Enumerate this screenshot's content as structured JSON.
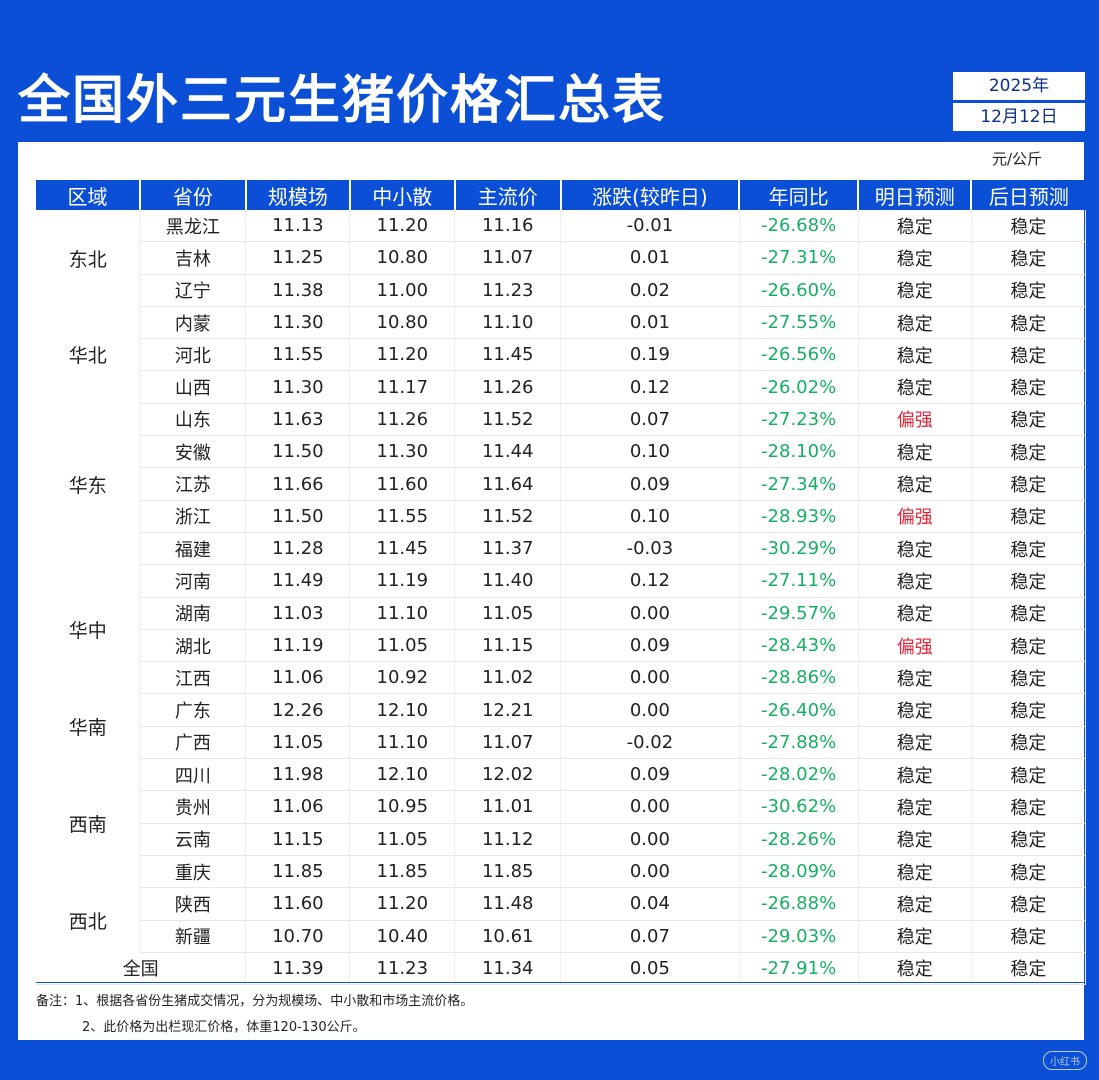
{
  "title": "全国外三元生猪价格汇总表",
  "date": {
    "year": "2025年",
    "day": "12月12日"
  },
  "unit": "元/公斤",
  "columns": [
    "区域",
    "省份",
    "规模场",
    "中小散",
    "主流价",
    "涨跌(较昨日)",
    "年同比",
    "明日预测",
    "后日预测"
  ],
  "rows": [
    {
      "region": "东北",
      "region_span": 3,
      "province": "黑龙江",
      "large": "11.13",
      "small": "11.20",
      "main": "11.16",
      "change": "-0.01",
      "trend": "down",
      "yoy": "-26.68%",
      "tomorrow": "稳定",
      "tomorrow_strong": false,
      "dayafter": "稳定"
    },
    {
      "province": "吉林",
      "large": "11.25",
      "small": "10.80",
      "main": "11.07",
      "change": "0.01",
      "trend": "up",
      "yoy": "-27.31%",
      "tomorrow": "稳定",
      "tomorrow_strong": false,
      "dayafter": "稳定"
    },
    {
      "province": "辽宁",
      "large": "11.38",
      "small": "11.00",
      "main": "11.23",
      "change": "0.02",
      "trend": "up",
      "yoy": "-26.60%",
      "tomorrow": "稳定",
      "tomorrow_strong": false,
      "dayafter": "稳定"
    },
    {
      "region": "华北",
      "region_span": 3,
      "province": "内蒙",
      "large": "11.30",
      "small": "10.80",
      "main": "11.10",
      "change": "0.01",
      "trend": "up",
      "yoy": "-27.55%",
      "tomorrow": "稳定",
      "tomorrow_strong": false,
      "dayafter": "稳定"
    },
    {
      "province": "河北",
      "large": "11.55",
      "small": "11.20",
      "main": "11.45",
      "change": "0.19",
      "trend": "up",
      "yoy": "-26.56%",
      "tomorrow": "稳定",
      "tomorrow_strong": false,
      "dayafter": "稳定"
    },
    {
      "province": "山西",
      "large": "11.30",
      "small": "11.17",
      "main": "11.26",
      "change": "0.12",
      "trend": "up",
      "yoy": "-26.02%",
      "tomorrow": "稳定",
      "tomorrow_strong": false,
      "dayafter": "稳定"
    },
    {
      "region": "华东",
      "region_span": 5,
      "province": "山东",
      "large": "11.63",
      "small": "11.26",
      "main": "11.52",
      "change": "0.07",
      "trend": "up",
      "yoy": "-27.23%",
      "tomorrow": "偏强",
      "tomorrow_strong": true,
      "dayafter": "稳定"
    },
    {
      "province": "安徽",
      "large": "11.50",
      "small": "11.30",
      "main": "11.44",
      "change": "0.10",
      "trend": "up",
      "yoy": "-28.10%",
      "tomorrow": "稳定",
      "tomorrow_strong": false,
      "dayafter": "稳定"
    },
    {
      "province": "江苏",
      "large": "11.66",
      "small": "11.60",
      "main": "11.64",
      "change": "0.09",
      "trend": "up",
      "yoy": "-27.34%",
      "tomorrow": "稳定",
      "tomorrow_strong": false,
      "dayafter": "稳定"
    },
    {
      "province": "浙江",
      "large": "11.50",
      "small": "11.55",
      "main": "11.52",
      "change": "0.10",
      "trend": "up",
      "yoy": "-28.93%",
      "tomorrow": "偏强",
      "tomorrow_strong": true,
      "dayafter": "稳定"
    },
    {
      "province": "福建",
      "large": "11.28",
      "small": "11.45",
      "main": "11.37",
      "change": "-0.03",
      "trend": "down",
      "yoy": "-30.29%",
      "tomorrow": "稳定",
      "tomorrow_strong": false,
      "dayafter": "稳定"
    },
    {
      "region": "华中",
      "region_span": 4,
      "province": "河南",
      "large": "11.49",
      "small": "11.19",
      "main": "11.40",
      "change": "0.12",
      "trend": "up",
      "yoy": "-27.11%",
      "tomorrow": "稳定",
      "tomorrow_strong": false,
      "dayafter": "稳定"
    },
    {
      "province": "湖南",
      "large": "11.03",
      "small": "11.10",
      "main": "11.05",
      "change": "0.00",
      "trend": "flat",
      "yoy": "-29.57%",
      "tomorrow": "稳定",
      "tomorrow_strong": false,
      "dayafter": "稳定"
    },
    {
      "province": "湖北",
      "large": "11.19",
      "small": "11.05",
      "main": "11.15",
      "change": "0.09",
      "trend": "up",
      "yoy": "-28.43%",
      "tomorrow": "偏强",
      "tomorrow_strong": true,
      "dayafter": "稳定"
    },
    {
      "province": "江西",
      "large": "11.06",
      "small": "10.92",
      "main": "11.02",
      "change": "0.00",
      "trend": "flat",
      "yoy": "-28.86%",
      "tomorrow": "稳定",
      "tomorrow_strong": false,
      "dayafter": "稳定"
    },
    {
      "region": "华南",
      "region_span": 2,
      "province": "广东",
      "large": "12.26",
      "small": "12.10",
      "main": "12.21",
      "change": "0.00",
      "trend": "flat",
      "yoy": "-26.40%",
      "tomorrow": "稳定",
      "tomorrow_strong": false,
      "dayafter": "稳定"
    },
    {
      "province": "广西",
      "large": "11.05",
      "small": "11.10",
      "main": "11.07",
      "change": "-0.02",
      "trend": "down",
      "yoy": "-27.88%",
      "tomorrow": "稳定",
      "tomorrow_strong": false,
      "dayafter": "稳定"
    },
    {
      "region": "西南",
      "region_span": 4,
      "province": "四川",
      "large": "11.98",
      "small": "12.10",
      "main": "12.02",
      "change": "0.09",
      "trend": "up",
      "yoy": "-28.02%",
      "tomorrow": "稳定",
      "tomorrow_strong": false,
      "dayafter": "稳定"
    },
    {
      "province": "贵州",
      "large": "11.06",
      "small": "10.95",
      "main": "11.01",
      "change": "0.00",
      "trend": "flat",
      "yoy": "-30.62%",
      "tomorrow": "稳定",
      "tomorrow_strong": false,
      "dayafter": "稳定"
    },
    {
      "province": "云南",
      "large": "11.15",
      "small": "11.05",
      "main": "11.12",
      "change": "0.00",
      "trend": "flat",
      "yoy": "-28.26%",
      "tomorrow": "稳定",
      "tomorrow_strong": false,
      "dayafter": "稳定"
    },
    {
      "province": "重庆",
      "large": "11.85",
      "small": "11.85",
      "main": "11.85",
      "change": "0.00",
      "trend": "flat",
      "yoy": "-28.09%",
      "tomorrow": "稳定",
      "tomorrow_strong": false,
      "dayafter": "稳定"
    },
    {
      "region": "西北",
      "region_span": 2,
      "province": "陕西",
      "large": "11.60",
      "small": "11.20",
      "main": "11.48",
      "change": "0.04",
      "trend": "up",
      "yoy": "-26.88%",
      "tomorrow": "稳定",
      "tomorrow_strong": false,
      "dayafter": "稳定"
    },
    {
      "province": "新疆",
      "large": "10.70",
      "small": "10.40",
      "main": "10.61",
      "change": "0.07",
      "trend": "up",
      "yoy": "-29.03%",
      "tomorrow": "稳定",
      "tomorrow_strong": false,
      "dayafter": "稳定"
    }
  ],
  "total": {
    "label": "全国",
    "large": "11.39",
    "small": "11.23",
    "main": "11.34",
    "change": "0.05",
    "trend": "up",
    "yoy": "-27.91%",
    "tomorrow": "稳定",
    "dayafter": "稳定"
  },
  "notes": [
    "备注：1、根据各省份生猪成交情况，分为规模场、中小散和市场主流价格。",
    "2、此价格为出栏现汇价格，体重120-130公斤。"
  ],
  "colors": {
    "brand_blue": "#0a4fd6",
    "up": "#e0253a",
    "down": "#16b060"
  },
  "watermark": "小红书"
}
